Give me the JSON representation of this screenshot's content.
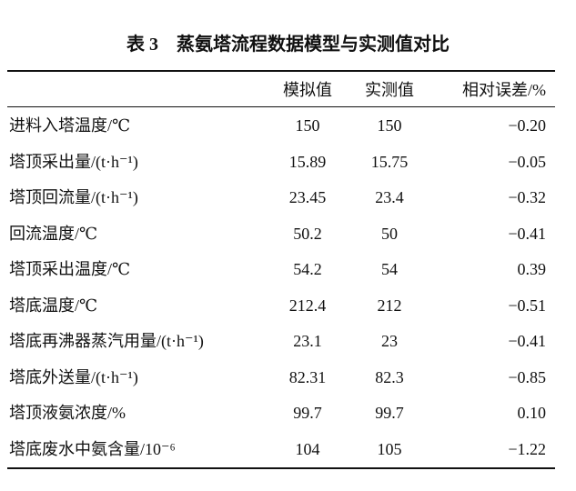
{
  "title": "表 3　蒸氨塔流程数据模型与实测值对比",
  "table": {
    "header": [
      "",
      "模拟值",
      "实测值",
      "相对误差/%"
    ],
    "rows": [
      [
        "进料入塔温度/℃",
        "150",
        "150",
        "−0.20"
      ],
      [
        "塔顶采出量/(t·h⁻¹)",
        "15.89",
        "15.75",
        "−0.05"
      ],
      [
        "塔顶回流量/(t·h⁻¹)",
        "23.45",
        "23.4",
        "−0.32"
      ],
      [
        "回流温度/℃",
        "50.2",
        "50",
        "−0.41"
      ],
      [
        "塔顶采出温度/℃",
        "54.2",
        "54",
        "0.39"
      ],
      [
        "塔底温度/℃",
        "212.4",
        "212",
        "−0.51"
      ],
      [
        "塔底再沸器蒸汽用量/(t·h⁻¹)",
        "23.1",
        "23",
        "−0.41"
      ],
      [
        "塔底外送量/(t·h⁻¹)",
        "82.31",
        "82.3",
        "−0.85"
      ],
      [
        "塔顶液氨浓度/%",
        "99.7",
        "99.7",
        "0.10"
      ],
      [
        "塔底废水中氨含量/10⁻⁶",
        "104",
        "105",
        "−1.22"
      ]
    ]
  }
}
